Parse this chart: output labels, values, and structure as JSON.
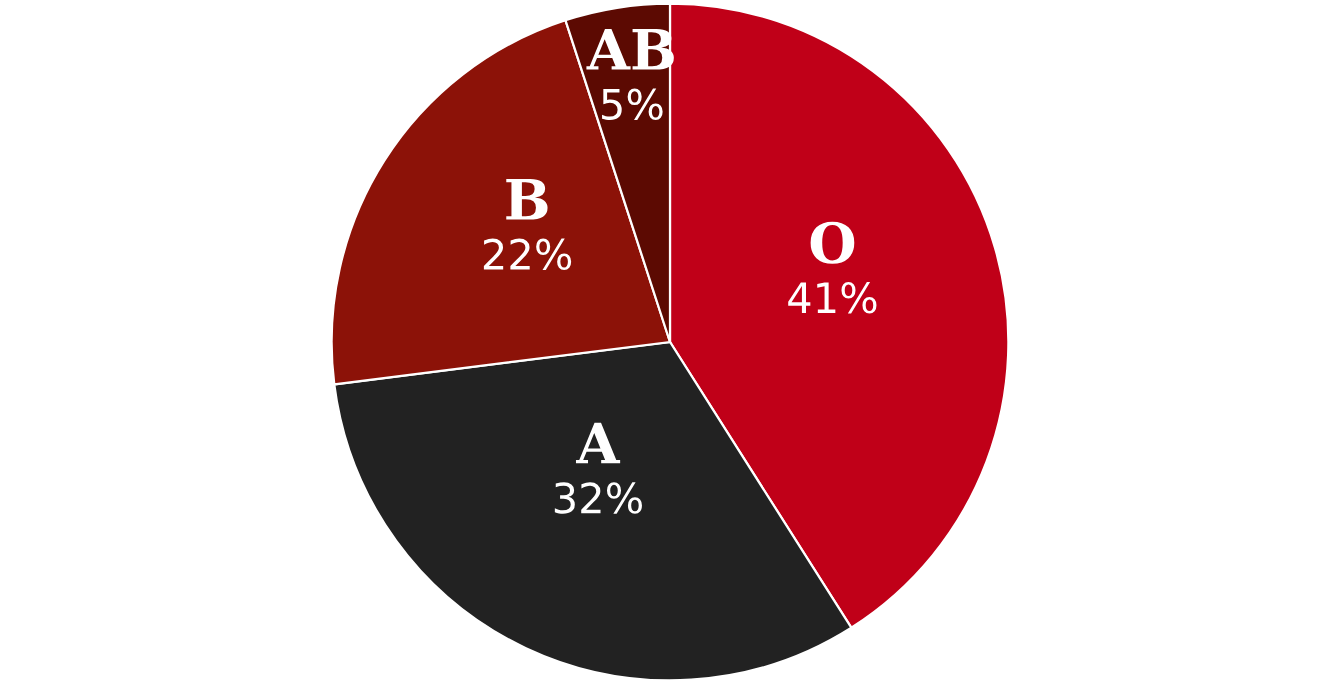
{
  "chart_data": {
    "type": "pie",
    "categories": [
      "O",
      "A",
      "B",
      "AB"
    ],
    "values": [
      41,
      32,
      22,
      5
    ],
    "colors": [
      "#c00018",
      "#222222",
      "#8c1208",
      "#5c0a02"
    ],
    "value_labels": [
      "41%",
      "32%",
      "22%",
      "5%"
    ]
  }
}
